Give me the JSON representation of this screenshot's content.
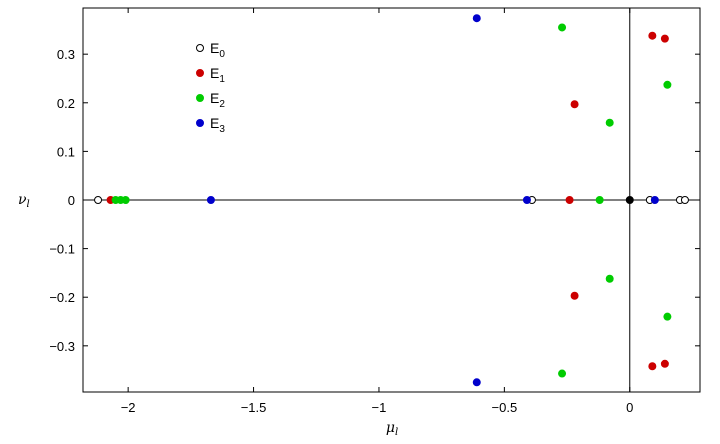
{
  "chart_data": {
    "type": "scatter",
    "title": "",
    "xlabel": "μ",
    "xlabel_sub": "l",
    "ylabel": "ν",
    "ylabel_sub": "l",
    "xlim": [
      -2.18,
      0.28
    ],
    "ylim": [
      -0.395,
      0.395
    ],
    "xticks": [
      -2,
      -1.5,
      -1,
      -0.5,
      0
    ],
    "xtick_labels": [
      "−2",
      "−1.5",
      "−1",
      "−0.5",
      "0"
    ],
    "yticks": [
      0.3,
      0.2,
      0.1,
      0,
      -0.1,
      -0.2,
      -0.3
    ],
    "ytick_labels": [
      "0.3",
      "0.2",
      "0.1",
      "0",
      "−0.1",
      "−0.2",
      "−0.3"
    ],
    "grid": false,
    "legend_position": "top-left",
    "reference_lines": {
      "horizontal_at_y": 0,
      "vertical_at_x": 0
    },
    "special_points": [
      {
        "x": 0,
        "y": 0,
        "color": "#000000"
      }
    ],
    "series": [
      {
        "name": "E",
        "sub": "0",
        "color": "#ffffff",
        "stroke": "#000000",
        "points": [
          [
            -2.12,
            0
          ],
          [
            -0.39,
            0
          ],
          [
            0.08,
            0
          ],
          [
            0.2,
            0
          ],
          [
            0.22,
            0
          ]
        ]
      },
      {
        "name": "E",
        "sub": "1",
        "color": "#cc0000",
        "stroke": "#cc0000",
        "points": [
          [
            -2.07,
            0
          ],
          [
            -0.24,
            0
          ],
          [
            -0.22,
            0.197
          ],
          [
            -0.22,
            -0.197
          ],
          [
            0.09,
            0.338
          ],
          [
            0.14,
            0.332
          ],
          [
            0.09,
            -0.342
          ],
          [
            0.14,
            -0.337
          ]
        ]
      },
      {
        "name": "E",
        "sub": "2",
        "color": "#00cc00",
        "stroke": "#00cc00",
        "points": [
          [
            -2.05,
            0
          ],
          [
            -2.03,
            0
          ],
          [
            -2.01,
            0
          ],
          [
            -0.12,
            0
          ],
          [
            -0.27,
            0.355
          ],
          [
            -0.27,
            -0.357
          ],
          [
            -0.08,
            0.159
          ],
          [
            -0.08,
            -0.162
          ],
          [
            0.15,
            0.237
          ],
          [
            0.15,
            -0.24
          ]
        ]
      },
      {
        "name": "E",
        "sub": "3",
        "color": "#0000cc",
        "stroke": "#0000cc",
        "points": [
          [
            -1.67,
            0
          ],
          [
            -0.41,
            0
          ],
          [
            0.1,
            0
          ],
          [
            -0.61,
            0.374
          ],
          [
            -0.61,
            -0.375
          ]
        ]
      }
    ]
  }
}
